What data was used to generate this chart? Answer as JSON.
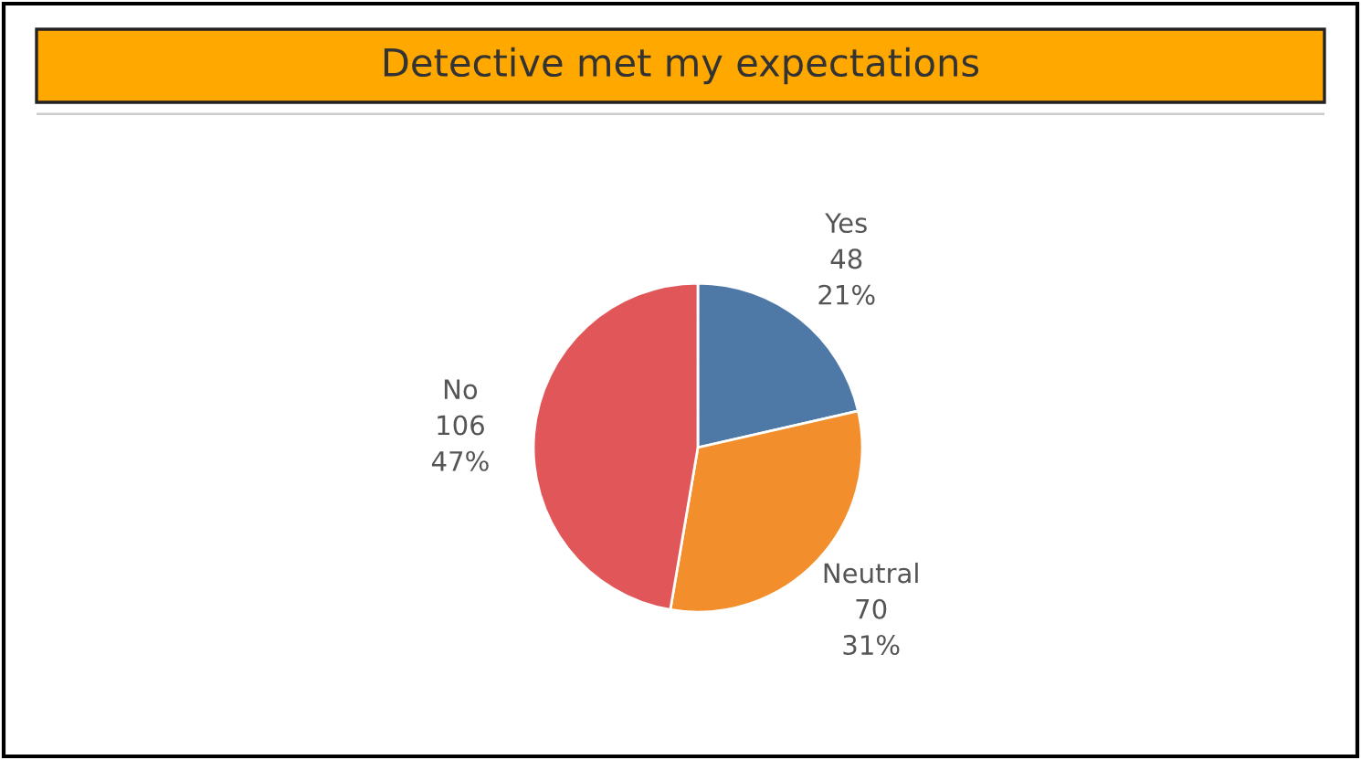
{
  "chart_data": {
    "type": "pie",
    "title": "Detective met my expectations",
    "categories": [
      "Yes",
      "Neutral",
      "No"
    ],
    "values": [
      48,
      70,
      106
    ],
    "colors": [
      "#4e79a7",
      "#f28e2b",
      "#e15759"
    ],
    "value_labels": [
      "48\n21%",
      "70\n31%",
      "106\n47%"
    ]
  }
}
